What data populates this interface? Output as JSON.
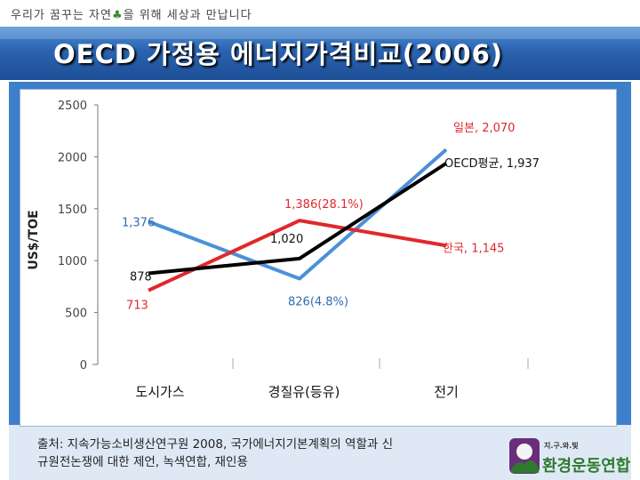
{
  "header": {
    "slogan_pre": "우리가 꿈꾸는 자연",
    "slogan_post": "을 위해 세상과 만납니다",
    "title": "OECD 가정용 에너지가격비교(2006)"
  },
  "chart_data": {
    "type": "line",
    "title": "",
    "xlabel": "",
    "ylabel": "US$/TOE",
    "categories": [
      "도시가스",
      "경질유(등유)",
      "전기"
    ],
    "ylim": [
      0,
      2500
    ],
    "yticks": [
      0,
      500,
      1000,
      1500,
      2000,
      2500
    ],
    "grid": false,
    "series": [
      {
        "name": "일본",
        "color": "#4a90d9",
        "values": [
          1376,
          826,
          2070
        ]
      },
      {
        "name": "한국",
        "color": "#e0282c",
        "values": [
          713,
          1386,
          1145
        ]
      },
      {
        "name": "OECD평균",
        "color": "#000000",
        "values": [
          878,
          1020,
          1937
        ]
      }
    ],
    "annotations": {
      "japan_start": "1,376",
      "japan_mid": "826(4.8%)",
      "japan_end": "일본, 2,070",
      "korea_start": "713",
      "korea_mid": "1,386(28.1%)",
      "korea_end": "한국, 1,145",
      "oecd_start": "878",
      "oecd_mid": "1,020",
      "oecd_end": "OECD평균, 1,937"
    }
  },
  "footer": {
    "source_line1": "출처: 지속가능소비생산연구원 2008, 국가에너지기본계획의 역할과 신",
    "source_line2": "규원전논쟁에 대한 제언, 녹색연합, 재인용"
  },
  "logo": {
    "top_text": "지.구.와.빛",
    "name": "환경운동연합",
    "accent": "#2d7a2d"
  }
}
